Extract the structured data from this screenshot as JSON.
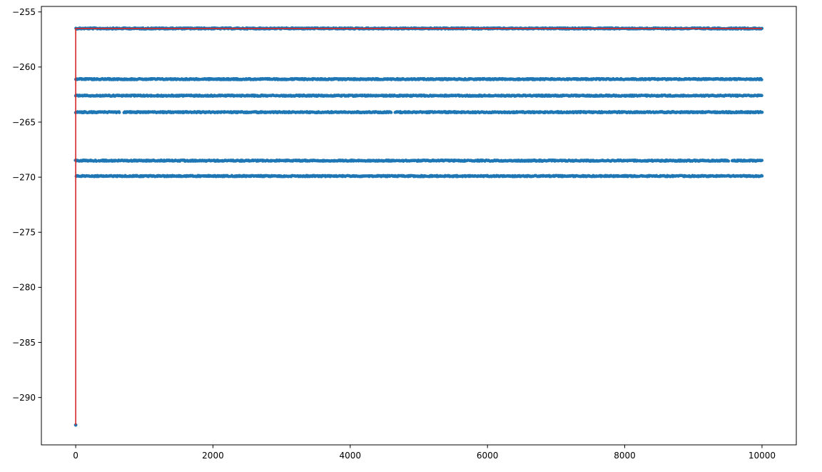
{
  "chart_data": {
    "type": "scatter",
    "title": "",
    "xlabel": "",
    "ylabel": "",
    "xlim": [
      -500,
      10500
    ],
    "ylim": [
      -294.3,
      -254.5
    ],
    "x_ticks": [
      0,
      2000,
      4000,
      6000,
      8000,
      10000
    ],
    "x_tick_labels": [
      "0",
      "2000",
      "4000",
      "6000",
      "8000",
      "10000"
    ],
    "y_ticks": [
      -255,
      -260,
      -265,
      -270,
      -275,
      -280,
      -285,
      -290
    ],
    "y_tick_labels": [
      "−255",
      "−260",
      "−265",
      "−270",
      "−275",
      "−280",
      "−285",
      "−290"
    ],
    "grid": false,
    "legend": "none",
    "scatter_bands": [
      {
        "y": -256.5,
        "x_start": 0,
        "x_end": 10000,
        "gaps": []
      },
      {
        "y": -261.1,
        "x_start": 0,
        "x_end": 10000,
        "gaps": []
      },
      {
        "y": -262.6,
        "x_start": 0,
        "x_end": 10000,
        "gaps": []
      },
      {
        "y": -264.1,
        "x_start": 0,
        "x_end": 10000,
        "gaps": [
          [
            640,
            700
          ],
          [
            4600,
            4650
          ]
        ]
      },
      {
        "y": -268.5,
        "x_start": 0,
        "x_end": 10000,
        "gaps": [
          [
            300,
            330
          ],
          [
            9520,
            9560
          ]
        ]
      },
      {
        "y": -269.9,
        "x_start": 0,
        "x_end": 10000,
        "gaps": []
      }
    ],
    "outlier_points": [
      {
        "x": 0,
        "y": -292.5
      }
    ],
    "best_line": {
      "x": [
        0,
        0,
        10000
      ],
      "y": [
        -292.5,
        -256.5,
        -256.5
      ]
    },
    "colors": {
      "points": "#1f77b4",
      "line": "#d62728"
    }
  }
}
